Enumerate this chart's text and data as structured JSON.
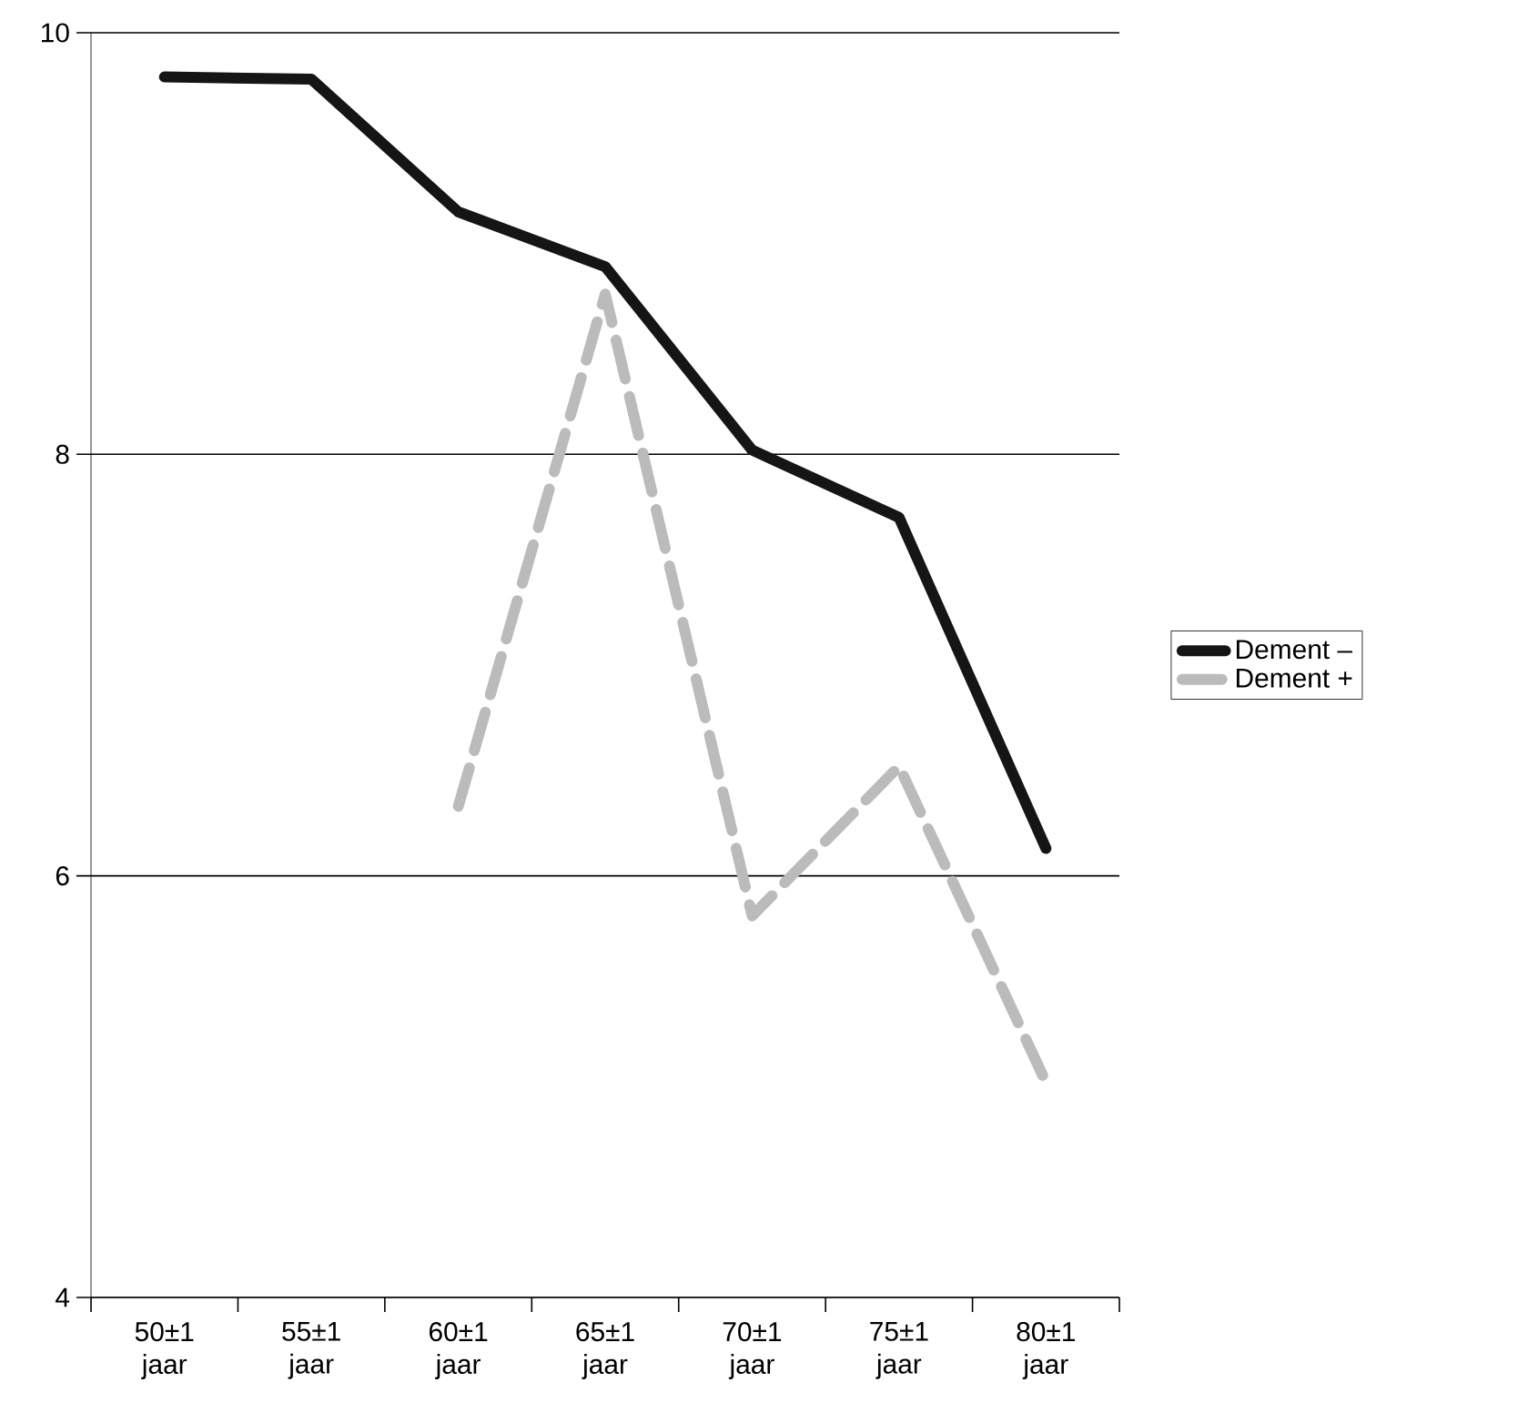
{
  "chart_data": {
    "type": "line",
    "categories": [
      "50±1 jaar",
      "55±1 jaar",
      "60±1 jaar",
      "65±1 jaar",
      "70±1 jaar",
      "75±1 jaar",
      "80±1 jaar"
    ],
    "series": [
      {
        "name": "Dement –",
        "color": "#151515",
        "line_style": "solid",
        "values": [
          9.79,
          9.78,
          9.15,
          8.89,
          8.02,
          7.7,
          6.13
        ]
      },
      {
        "name": "Dement +",
        "color": "#bbbbbb",
        "line_style": "dashed",
        "values": [
          null,
          null,
          6.33,
          8.76,
          5.81,
          6.52,
          5.02
        ]
      }
    ],
    "ylim": [
      4,
      10
    ],
    "yticks": [
      4,
      6,
      8,
      10
    ],
    "grid": "y",
    "legend": "right",
    "marker": "none"
  }
}
